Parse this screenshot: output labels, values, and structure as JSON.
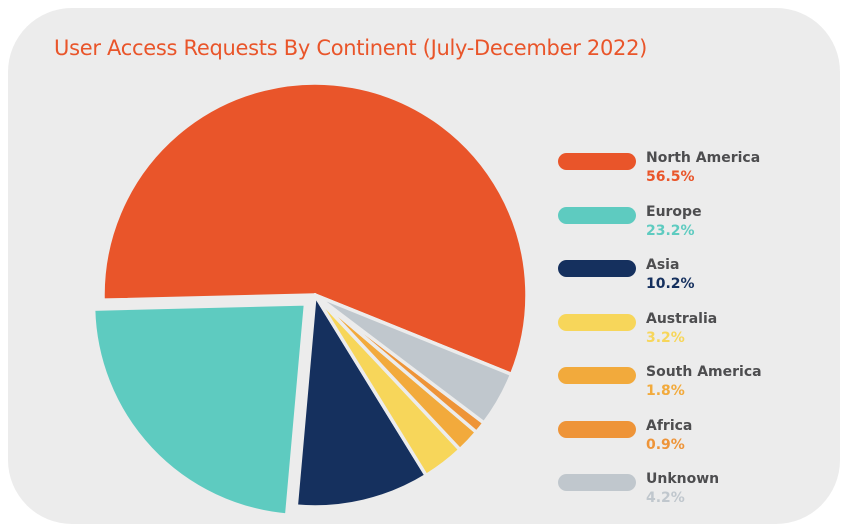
{
  "chart_data": {
    "type": "pie",
    "title": "User Access Requests By Continent (July-December 2022)",
    "categories": [
      "North America",
      "Europe",
      "Asia",
      "Australia",
      "South America",
      "Africa",
      "Unknown"
    ],
    "values": [
      56.5,
      23.2,
      10.2,
      3.2,
      1.8,
      0.9,
      4.2
    ],
    "value_labels": [
      "56.5%",
      "23.2%",
      "10.2%",
      "3.2%",
      "1.8%",
      "0.9%",
      "4.2%"
    ],
    "colors": [
      "#e9552a",
      "#5ecbc0",
      "#15305e",
      "#f7d65a",
      "#f2aa3c",
      "#ee9438",
      "#c0c7cd"
    ],
    "exploded": [
      "Europe"
    ],
    "legend_position": "right"
  }
}
